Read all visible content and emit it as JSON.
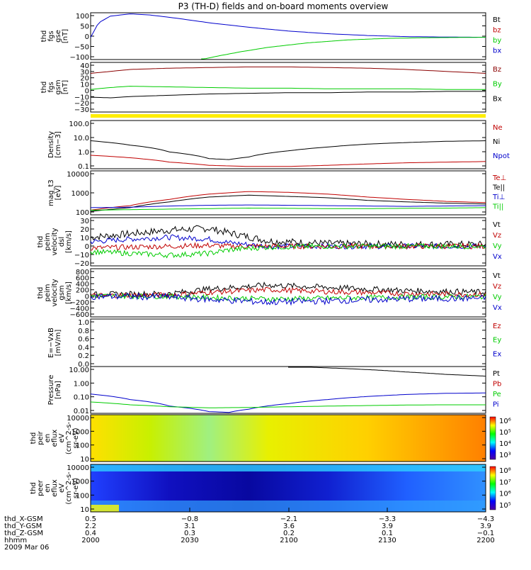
{
  "title": "P3 (TH-D) fields and on-board moments overview",
  "colors": {
    "black": "#000000",
    "red": "#c00000",
    "green": "#00cc00",
    "blue": "#0000cc",
    "darkred": "#8b0000",
    "yellow": "#ffee00"
  },
  "chart_data": [
    {
      "type": "line",
      "id": "fgs_gse",
      "ylabel": [
        "thd",
        "fgs",
        "gse",
        "[nT]"
      ],
      "yticks": [
        "100",
        "50",
        "0",
        "−50",
        "−100"
      ],
      "ylim": [
        -100,
        110
      ],
      "legend": [
        {
          "name": "Bt",
          "color": "#000000"
        },
        {
          "name": "bz",
          "color": "#c00000"
        },
        {
          "name": "by",
          "color": "#00cc00"
        },
        {
          "name": "bx",
          "color": "#0000cc"
        }
      ],
      "series": [
        {
          "name": "bx",
          "color": "#0000cc",
          "x": [
            0,
            0.02,
            0.05,
            0.1,
            0.15,
            0.22,
            0.3,
            0.4,
            0.5,
            0.6,
            0.7,
            0.8,
            0.9,
            1.0
          ],
          "y": [
            0,
            65,
            95,
            105,
            100,
            85,
            65,
            45,
            28,
            16,
            8,
            3,
            1,
            0
          ]
        },
        {
          "name": "by",
          "color": "#00cc00",
          "x": [
            0.28,
            0.32,
            0.38,
            0.45,
            0.55,
            0.65,
            0.75,
            0.85,
            1.0
          ],
          "y": [
            -100,
            -85,
            -65,
            -45,
            -25,
            -12,
            -5,
            -2,
            0
          ]
        }
      ]
    },
    {
      "type": "line",
      "id": "fgs_gsm",
      "ylabel": [
        "thd",
        "fgs",
        "gsm",
        "[nT]"
      ],
      "yticks": [
        "40",
        "30",
        "20",
        "10",
        "0",
        "−10",
        "−20",
        "−30"
      ],
      "ylim": [
        -35,
        42
      ],
      "legend": [
        {
          "name": "Bz",
          "color": "#8b0000"
        },
        {
          "name": "By",
          "color": "#00cc00"
        },
        {
          "name": "Bx",
          "color": "#000000"
        }
      ],
      "series": [
        {
          "name": "Bz",
          "color": "#8b0000",
          "x": [
            0,
            0.05,
            0.1,
            0.2,
            0.3,
            0.4,
            0.5,
            0.6,
            0.7,
            0.8,
            0.9,
            1.0
          ],
          "y": [
            25,
            28,
            31,
            33,
            34,
            35,
            35,
            34,
            33,
            31,
            28,
            25
          ]
        },
        {
          "name": "By",
          "color": "#00cc00",
          "x": [
            0,
            0.05,
            0.1,
            0.2,
            0.3,
            0.4,
            0.5,
            0.6,
            0.7,
            0.8,
            0.9,
            1.0
          ],
          "y": [
            0,
            3,
            5,
            4,
            3,
            2,
            2,
            1,
            1,
            1,
            0,
            0
          ]
        },
        {
          "name": "Bx",
          "color": "#000000",
          "x": [
            0,
            0.05,
            0.1,
            0.2,
            0.3,
            0.4,
            0.5,
            0.6,
            0.7,
            0.8,
            0.9,
            1.0
          ],
          "y": [
            -12,
            -13,
            -11,
            -9,
            -7,
            -6,
            -5,
            -5,
            -4,
            -4,
            -3,
            -3
          ]
        }
      ]
    },
    {
      "type": "line",
      "id": "density",
      "ylabel": [
        "Density",
        "[cm−3]"
      ],
      "yticks": [
        "100.0",
        "10.0",
        "1.0",
        "0.1"
      ],
      "scale": "log",
      "ylim": [
        0.07,
        150
      ],
      "legend": [
        {
          "name": "Ne",
          "color": "#c00000"
        },
        {
          "name": "Ni",
          "color": "#000000"
        },
        {
          "name": "Npot",
          "color": "#0000cc"
        }
      ],
      "series": [
        {
          "name": "Ni",
          "color": "#000000",
          "x": [
            0,
            0.1,
            0.2,
            0.3,
            0.35,
            0.4,
            0.5,
            0.6,
            0.7,
            0.8,
            0.9,
            1.0
          ],
          "y": [
            6,
            3,
            1,
            0.35,
            0.3,
            0.45,
            1.2,
            2.2,
            3.5,
            4.5,
            5.5,
            6
          ]
        },
        {
          "name": "Ne",
          "color": "#c00000",
          "x": [
            0,
            0.1,
            0.2,
            0.3,
            0.4,
            0.5,
            0.6,
            0.7,
            0.8,
            0.9,
            1.0
          ],
          "y": [
            0.6,
            0.4,
            0.2,
            0.12,
            0.1,
            0.1,
            0.12,
            0.15,
            0.18,
            0.2,
            0.22
          ]
        }
      ]
    },
    {
      "type": "line",
      "id": "temperature",
      "ylabel": [
        "mag_t3",
        "[eV]"
      ],
      "yticks": [
        "10000",
        "1000",
        "100"
      ],
      "scale": "log",
      "ylim": [
        90,
        12000
      ],
      "legend": [
        {
          "name": "Te⊥",
          "color": "#c00000"
        },
        {
          "name": "Te||",
          "color": "#000000"
        },
        {
          "name": "Ti⊥",
          "color": "#0000cc"
        },
        {
          "name": "Ti||",
          "color": "#00cc00"
        }
      ],
      "series": [
        {
          "name": "Te⊥",
          "color": "#c00000",
          "x": [
            0,
            0.1,
            0.2,
            0.3,
            0.4,
            0.5,
            0.6,
            0.7,
            0.8,
            0.9,
            1.0
          ],
          "y": [
            150,
            250,
            500,
            900,
            1200,
            1100,
            900,
            650,
            500,
            400,
            350
          ]
        },
        {
          "name": "Te||",
          "color": "#000000",
          "x": [
            0,
            0.1,
            0.2,
            0.3,
            0.4,
            0.5,
            0.6,
            0.7,
            0.8,
            0.9,
            1.0
          ],
          "y": [
            130,
            200,
            380,
            650,
            800,
            700,
            600,
            450,
            380,
            330,
            300
          ]
        },
        {
          "name": "Ti⊥",
          "color": "#0000cc",
          "x": [
            0,
            0.1,
            0.2,
            0.3,
            0.4,
            0.5,
            0.6,
            0.7,
            0.8,
            0.9,
            1.0
          ],
          "y": [
            200,
            210,
            240,
            260,
            270,
            260,
            250,
            240,
            230,
            240,
            250
          ]
        },
        {
          "name": "Ti||",
          "color": "#00cc00",
          "x": [
            0,
            0.1,
            0.2,
            0.3,
            0.4,
            0.5,
            0.6,
            0.7,
            0.8,
            0.9,
            1.0
          ],
          "y": [
            150,
            160,
            170,
            180,
            190,
            185,
            180,
            180,
            185,
            190,
            200
          ]
        }
      ]
    },
    {
      "type": "line",
      "id": "peim_velocity_dsl",
      "ylabel": [
        "thd",
        "peim",
        "velocity",
        "dsl",
        "[km/s]"
      ],
      "yticks": [
        "30",
        "20",
        "10",
        "0",
        "−10",
        "−20"
      ],
      "ylim": [
        -22,
        32
      ],
      "noisy": true,
      "legend": [
        {
          "name": "Vt",
          "color": "#000000"
        },
        {
          "name": "Vz",
          "color": "#c00000"
        },
        {
          "name": "Vy",
          "color": "#00cc00"
        },
        {
          "name": "Vx",
          "color": "#0000cc"
        }
      ],
      "series": [
        {
          "name": "Vt",
          "color": "#000000",
          "noise": 4,
          "x": [
            0,
            0.1,
            0.2,
            0.3,
            0.35,
            0.45,
            0.6,
            0.8,
            1.0
          ],
          "y": [
            10,
            14,
            18,
            20,
            15,
            6,
            3,
            2,
            2
          ]
        },
        {
          "name": "Vx",
          "color": "#0000cc",
          "noise": 3,
          "x": [
            0,
            0.1,
            0.2,
            0.3,
            0.35,
            0.45,
            0.6,
            0.8,
            1.0
          ],
          "y": [
            5,
            8,
            10,
            8,
            4,
            0,
            0,
            0,
            0
          ]
        },
        {
          "name": "Vz",
          "color": "#c00000",
          "noise": 3,
          "x": [
            0,
            0.1,
            0.2,
            0.3,
            0.35,
            0.45,
            0.6,
            0.8,
            1.0
          ],
          "y": [
            -2,
            -1,
            0,
            1,
            0,
            0,
            0,
            0,
            0
          ]
        },
        {
          "name": "Vy",
          "color": "#00cc00",
          "noise": 3,
          "x": [
            0,
            0.1,
            0.2,
            0.3,
            0.35,
            0.45,
            0.6,
            0.8,
            1.0
          ],
          "y": [
            -6,
            -8,
            -10,
            -8,
            -4,
            -1,
            0,
            0,
            0
          ]
        }
      ]
    },
    {
      "type": "line",
      "id": "peim_velocity_gsm",
      "ylabel": [
        "thd",
        "peim",
        "velocity",
        "gsm",
        "[km/s]"
      ],
      "yticks": [
        "800",
        "600",
        "400",
        "200",
        "0",
        "−200",
        "−400",
        "−600"
      ],
      "ylim": [
        -650,
        820
      ],
      "noisy": true,
      "legend": [
        {
          "name": "Vt",
          "color": "#000000"
        },
        {
          "name": "Vz",
          "color": "#c00000"
        },
        {
          "name": "Vy",
          "color": "#00cc00"
        },
        {
          "name": "Vx",
          "color": "#0000cc"
        }
      ],
      "series": [
        {
          "name": "Vt",
          "color": "#000000",
          "noise": 90,
          "x": [
            0,
            0.2,
            0.3,
            0.45,
            0.6,
            0.8,
            1.0
          ],
          "y": [
            30,
            60,
            200,
            320,
            250,
            150,
            100
          ]
        },
        {
          "name": "Vz",
          "color": "#c00000",
          "noise": 80,
          "x": [
            0,
            0.2,
            0.3,
            0.45,
            0.6,
            0.8,
            1.0
          ],
          "y": [
            0,
            20,
            100,
            180,
            120,
            60,
            30
          ]
        },
        {
          "name": "Vy",
          "color": "#00cc00",
          "noise": 80,
          "x": [
            0,
            0.2,
            0.3,
            0.45,
            0.6,
            0.8,
            1.0
          ],
          "y": [
            -10,
            -20,
            -60,
            -100,
            -80,
            -50,
            -30
          ]
        },
        {
          "name": "Vx",
          "color": "#0000cc",
          "noise": 100,
          "x": [
            0,
            0.2,
            0.3,
            0.45,
            0.6,
            0.8,
            1.0
          ],
          "y": [
            -20,
            -40,
            -120,
            -200,
            -160,
            -100,
            -80
          ]
        }
      ]
    },
    {
      "type": "line",
      "id": "e_vxb",
      "ylabel": [
        "E=−VxB",
        "[mV/m]"
      ],
      "yticks": [
        "1.0",
        "0.8",
        "0.6",
        "0.4",
        "0.2",
        "0.0"
      ],
      "ylim": [
        0,
        1
      ],
      "legend": [
        {
          "name": "Ez",
          "color": "#c00000"
        },
        {
          "name": "Ey",
          "color": "#00cc00"
        },
        {
          "name": "Ex",
          "color": "#0000cc"
        }
      ],
      "series": []
    },
    {
      "type": "line",
      "id": "pressure",
      "ylabel": [
        "Pressure",
        "[nPa]"
      ],
      "yticks": [
        "10.00",
        "1.00",
        "0.10",
        "0.01"
      ],
      "scale": "log",
      "ylim": [
        0.006,
        15
      ],
      "legend": [
        {
          "name": "Pt",
          "color": "#000000"
        },
        {
          "name": "Pb",
          "color": "#c00000"
        },
        {
          "name": "Pe",
          "color": "#00cc00"
        },
        {
          "name": "Pi",
          "color": "#0000cc"
        }
      ],
      "series": [
        {
          "name": "Pt",
          "color": "#000000",
          "x": [
            0.5,
            0.6,
            0.7,
            0.8,
            0.9,
            1.0
          ],
          "y": [
            15,
            12,
            9,
            6,
            4,
            3
          ]
        },
        {
          "name": "Pi",
          "color": "#0000cc",
          "x": [
            0,
            0.1,
            0.2,
            0.3,
            0.35,
            0.4,
            0.5,
            0.6,
            0.7,
            0.8,
            0.9,
            1.0
          ],
          "y": [
            0.15,
            0.06,
            0.02,
            0.008,
            0.007,
            0.012,
            0.03,
            0.06,
            0.1,
            0.14,
            0.17,
            0.18
          ]
        },
        {
          "name": "Pe",
          "color": "#00cc00",
          "x": [
            0,
            0.1,
            0.2,
            0.3,
            0.4,
            0.5,
            0.6,
            0.7,
            0.8,
            0.9,
            1.0
          ],
          "y": [
            0.04,
            0.025,
            0.018,
            0.015,
            0.016,
            0.018,
            0.02,
            0.022,
            0.024,
            0.025,
            0.025
          ]
        }
      ]
    },
    {
      "type": "heatmap",
      "id": "peir_eflux",
      "ylabel": [
        "thd",
        "peir",
        "en",
        "eflux",
        "eV",
        "(cm^2-s-",
        "sr-eV)"
      ],
      "yticks": [
        "10000",
        "1000",
        "100",
        "10"
      ],
      "colorbar_ticks": [
        "10⁶",
        "10⁵",
        "10⁴",
        "10³"
      ]
    },
    {
      "type": "heatmap",
      "id": "peer_eflux",
      "ylabel": [
        "thd",
        "peer",
        "en",
        "eflux",
        "eV",
        "(cm^2-s-",
        "sr-eV)"
      ],
      "yticks": [
        "10000",
        "1000",
        "100",
        "10"
      ],
      "colorbar_ticks": [
        "10⁸",
        "10⁷",
        "10⁶",
        "10⁵"
      ]
    }
  ],
  "xaxis": {
    "row_labels": [
      "thd_X-GSM",
      "thd_Y-GSM",
      "thd_Z-GSM",
      "hhmm",
      "2009 Mar 06"
    ],
    "columns": [
      {
        "x": "0.5",
        "y": "2.2",
        "z": "0.4",
        "t": "2000"
      },
      {
        "x": "−0.8",
        "y": "3.1",
        "z": "0.3",
        "t": "2030"
      },
      {
        "x": "−2.1",
        "y": "3.6",
        "z": "0.2",
        "t": "2100"
      },
      {
        "x": "−3.3",
        "y": "3.9",
        "z": "0.1",
        "t": "2130"
      },
      {
        "x": "−4.3",
        "y": "3.9",
        "z": "−0.1",
        "t": "2200"
      }
    ]
  }
}
